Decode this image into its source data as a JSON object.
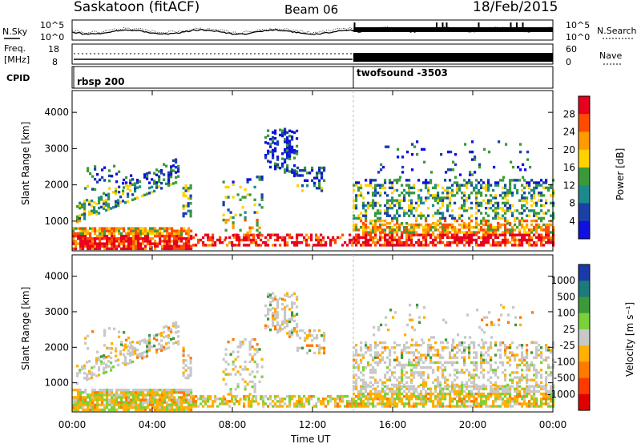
{
  "header": {
    "title": "Saskatoon (fitACF)",
    "beam": "Beam 06",
    "date": "18/Feb/2015"
  },
  "aux_panels": {
    "nsky_label": "N.Sky",
    "nsearch_label": "N.Search",
    "nsky_ticks": [
      "10^5",
      "10^0"
    ],
    "freq_label_1": "Freq.",
    "freq_label_2": "[MHz]",
    "freq_ticks": [
      "18",
      "8"
    ],
    "nave_label": "Nave",
    "nave_ticks": [
      "60",
      "0"
    ],
    "cpid_label": "CPID",
    "cpid_segments": [
      {
        "name": "rbsp 200",
        "start_hour": 0
      },
      {
        "name": "twofsound -3503",
        "start_hour": 14
      }
    ]
  },
  "x_axis": {
    "label": "Time UT",
    "ticks": [
      "00:00",
      "04:00",
      "08:00",
      "12:00",
      "16:00",
      "20:00",
      "00:00"
    ],
    "range_hours": [
      0,
      24
    ]
  },
  "chart_data": [
    {
      "type": "heatmap",
      "title": "",
      "xlabel": "Time UT",
      "ylabel": "Slant Range [km]",
      "xlim": [
        0,
        24
      ],
      "ylim": [
        180,
        4600
      ],
      "yticks": [
        "1000",
        "2000",
        "3000",
        "4000"
      ],
      "colorbar": {
        "label": "Power [dB]",
        "ticks": [
          "28",
          "24",
          "20",
          "16",
          "12",
          "8",
          "4"
        ],
        "colors": [
          "#e8001c",
          "#ff4b00",
          "#ff9a00",
          "#ffd200",
          "#3a9a3a",
          "#1c8a8a",
          "#1a40a8",
          "#1010e0"
        ]
      }
    },
    {
      "type": "heatmap",
      "title": "",
      "xlabel": "Time UT",
      "ylabel": "Slant Range [km]",
      "xlim": [
        0,
        24
      ],
      "ylim": [
        180,
        4600
      ],
      "yticks": [
        "1000",
        "2000",
        "3000",
        "4000"
      ],
      "colorbar": {
        "label": "Velocity [m s⁻¹]",
        "ticks": [
          "1000",
          "500",
          "100",
          "25",
          "-25",
          "-100",
          "-500",
          "-1000"
        ],
        "colors": [
          "#1a3aa8",
          "#1c7a78",
          "#3a9a3a",
          "#7ad23a",
          "#c8c8c8",
          "#ffb000",
          "#ff7a00",
          "#ff3a00",
          "#e00000"
        ]
      }
    }
  ]
}
